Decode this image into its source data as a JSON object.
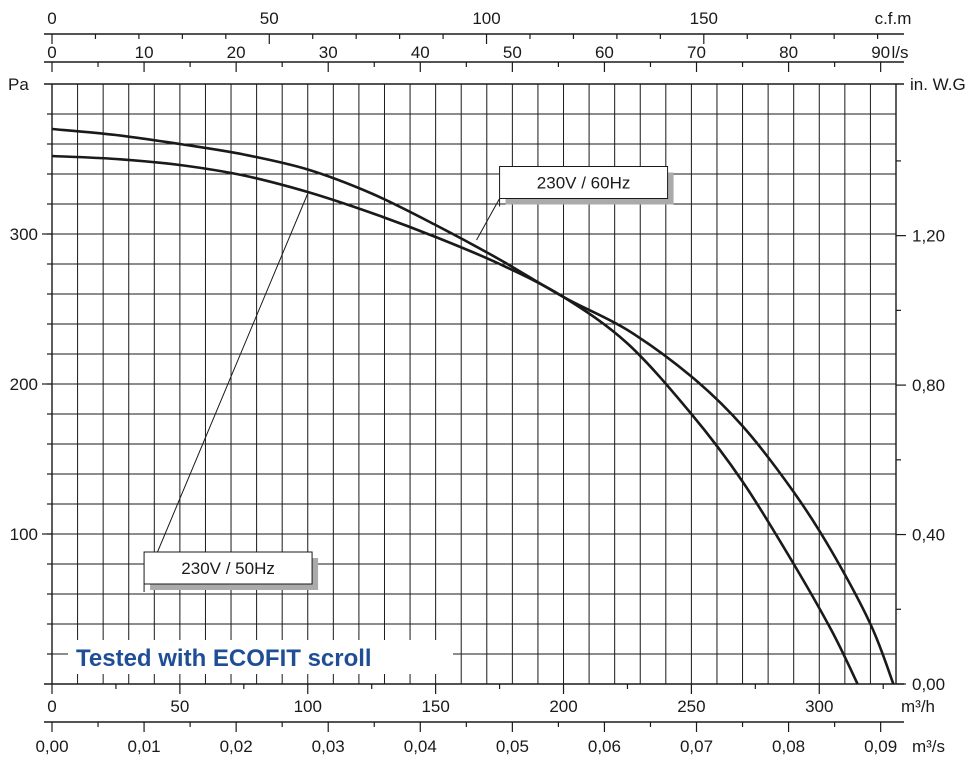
{
  "chart_data": {
    "type": "line",
    "note": "Tested with ECOFIT scroll",
    "colors": {
      "curves": "#1a1a1a",
      "note": "#1f4e96",
      "grid": "#1a1a1a",
      "label_shadow": "#aaaaaa"
    },
    "axes": {
      "x_main": {
        "unit": "m³/h",
        "range": [
          0,
          330
        ],
        "ticks": [
          0,
          50,
          100,
          150,
          200,
          250,
          300
        ],
        "tick_labels": [
          "0",
          "50",
          "100",
          "150",
          "200",
          "250",
          "300"
        ],
        "position": "bottom"
      },
      "x_m3s": {
        "unit": "m³/s",
        "ticks": [
          0,
          0.01,
          0.02,
          0.03,
          0.04,
          0.05,
          0.06,
          0.07,
          0.08,
          0.09
        ],
        "tick_labels": [
          "0,00",
          "0,01",
          "0,02",
          "0,03",
          "0,04",
          "0,05",
          "0,06",
          "0,07",
          "0,08",
          "0,09"
        ],
        "position": "bottom"
      },
      "x_ls": {
        "unit": "l/s",
        "ticks": [
          0,
          10,
          20,
          30,
          40,
          50,
          60,
          70,
          80,
          90
        ],
        "tick_labels": [
          "0",
          "10",
          "20",
          "30",
          "40",
          "50",
          "60",
          "70",
          "80",
          "90"
        ],
        "position": "top"
      },
      "x_cfm": {
        "unit": "c.f.m",
        "ticks": [
          0,
          50,
          100,
          150
        ],
        "tick_labels": [
          "0",
          "50",
          "100",
          "150"
        ],
        "position": "top"
      },
      "y_main": {
        "unit": "Pa",
        "range": [
          0,
          400
        ],
        "ticks": [
          100,
          200,
          300
        ],
        "tick_labels": [
          "100",
          "200",
          "300"
        ],
        "position": "left"
      },
      "y_inwg": {
        "unit": "in. W.G",
        "ticks": [
          0,
          0.4,
          0.8,
          1.2
        ],
        "tick_labels": [
          "0,00",
          "0,40",
          "0,80",
          "1,20"
        ],
        "position": "right"
      }
    },
    "grid": true,
    "series": [
      {
        "name": "230V / 60Hz",
        "x": [
          0,
          25,
          50,
          75,
          100,
          125,
          150,
          175,
          200,
          225,
          250,
          270,
          290,
          305,
          320,
          329
        ],
        "y": [
          370,
          366,
          360,
          353,
          343,
          327,
          306,
          283,
          258,
          236,
          205,
          172,
          128,
          88,
          40,
          0
        ]
      },
      {
        "name": "230V / 50Hz",
        "x": [
          0,
          25,
          50,
          75,
          100,
          125,
          150,
          175,
          200,
          225,
          250,
          270,
          290,
          305,
          315
        ],
        "y": [
          352,
          350,
          346,
          339,
          328,
          314,
          298,
          280,
          258,
          227,
          180,
          135,
          80,
          35,
          0
        ]
      }
    ],
    "annotations": [
      {
        "text": "230V / 60Hz",
        "series": "230V / 60Hz",
        "box_at": [
          175,
          345
        ],
        "points_to": [
          166,
          296
        ]
      },
      {
        "text": "230V / 50Hz",
        "series": "230V / 50Hz",
        "box_at": [
          36,
          88
        ],
        "points_to": [
          100,
          327
        ]
      }
    ]
  }
}
